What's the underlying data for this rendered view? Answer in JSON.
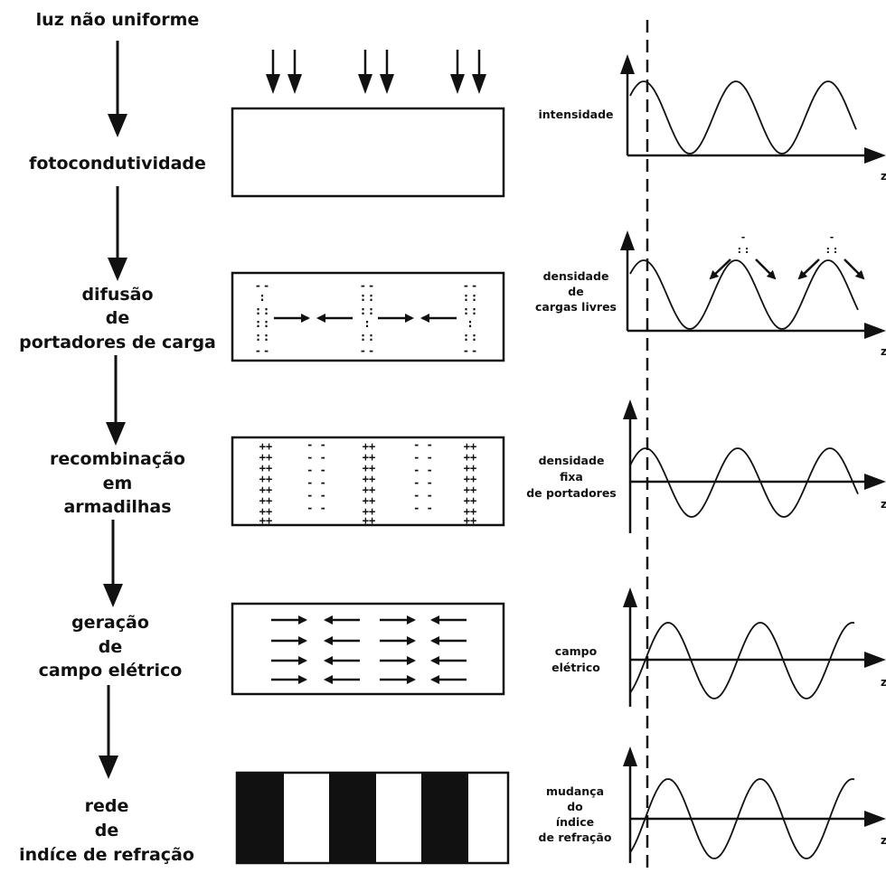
{
  "title": "luz não uniforme",
  "stages": [
    {
      "lines": [
        "fotocondutividade"
      ],
      "plot_label": [
        "intensidade"
      ]
    },
    {
      "lines": [
        "difusão",
        "de",
        "portadores de carga"
      ],
      "plot_label": [
        "densidade",
        "de",
        "cargas livres"
      ]
    },
    {
      "lines": [
        "recombinação",
        "em",
        "armadilhas"
      ],
      "plot_label": [
        "densidade",
        "fixa",
        "de portadores"
      ]
    },
    {
      "lines": [
        "geração",
        "de",
        "campo elétrico"
      ],
      "plot_label": [
        "campo",
        "elétrico"
      ]
    },
    {
      "lines": [
        "rede",
        "de",
        "indíce de refração"
      ],
      "plot_label": [
        "mudança",
        "do",
        "índice",
        "de refração"
      ]
    }
  ],
  "axis_label": "z",
  "colors": {
    "ink": "#111111",
    "background": "#ffffff"
  }
}
